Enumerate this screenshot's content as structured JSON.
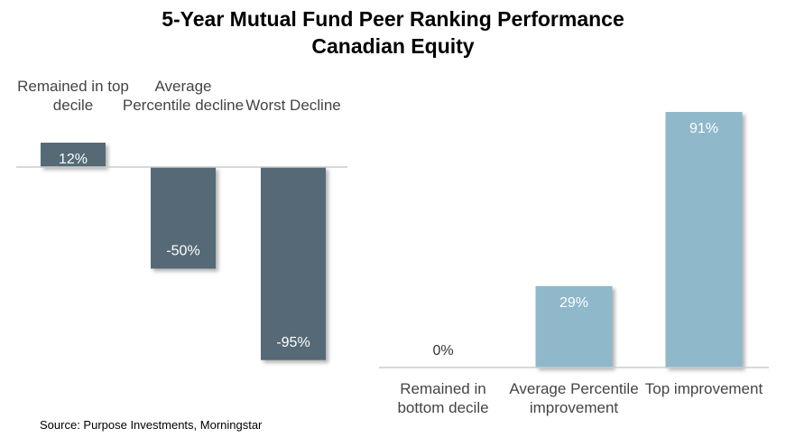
{
  "title": "5-Year Mutual Fund Peer Ranking Performance",
  "subtitle": "Canadian Equity",
  "source": "Source: Purpose Investments, Morningstar",
  "chart_data": [
    {
      "type": "bar",
      "categories": [
        "Remained in top decile",
        "Average Percentile decline",
        "Worst Decline"
      ],
      "values": [
        12,
        -50,
        -95
      ],
      "value_labels": [
        "12%",
        "-50%",
        "-95%"
      ],
      "color": "#546a76",
      "ylim": [
        -100,
        20
      ]
    },
    {
      "type": "bar",
      "categories": [
        "Remained in bottom decile",
        "Average Percentile improvement",
        "Top improvement"
      ],
      "values": [
        0,
        29,
        91
      ],
      "value_labels": [
        "0%",
        "29%",
        "91%"
      ],
      "color": "#8fb8cb",
      "ylim": [
        0,
        100
      ]
    }
  ]
}
